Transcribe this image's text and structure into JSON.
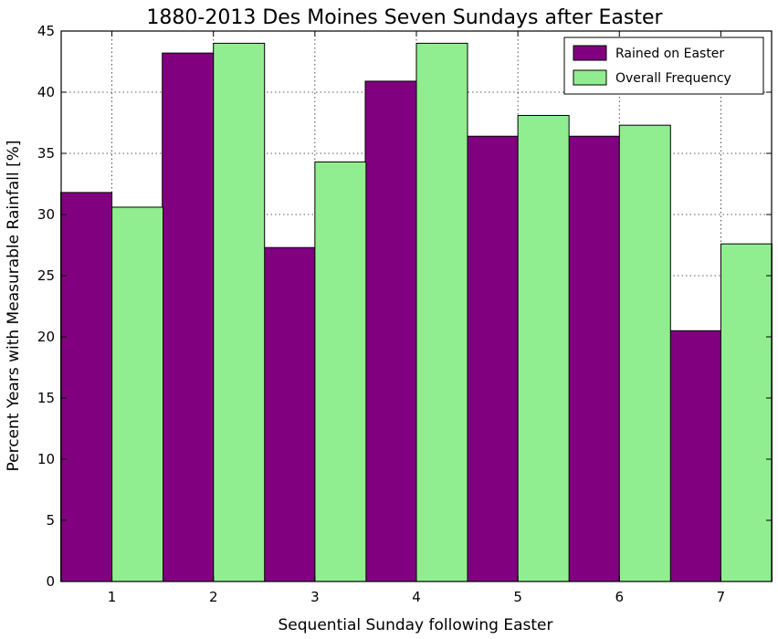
{
  "chart_data": {
    "type": "bar",
    "title": "1880-2013 Des Moines Seven Sundays after Easter",
    "xlabel": "Sequential Sunday following Easter",
    "ylabel": "Percent Years with Measurable Rainfall [%]",
    "categories": [
      "1",
      "2",
      "3",
      "4",
      "5",
      "6",
      "7"
    ],
    "ylim": [
      0,
      45
    ],
    "yticks": [
      0,
      5,
      10,
      15,
      20,
      25,
      30,
      35,
      40,
      45
    ],
    "grid": true,
    "legend_position": "top-right",
    "series": [
      {
        "name": "Rained on Easter",
        "color": "#800080",
        "values": [
          31.8,
          43.2,
          27.3,
          40.9,
          36.4,
          36.4,
          20.5
        ]
      },
      {
        "name": "Overall Frequency",
        "color": "#90ee90",
        "values": [
          30.6,
          44.0,
          34.3,
          44.0,
          38.1,
          37.3,
          27.6
        ]
      }
    ]
  }
}
